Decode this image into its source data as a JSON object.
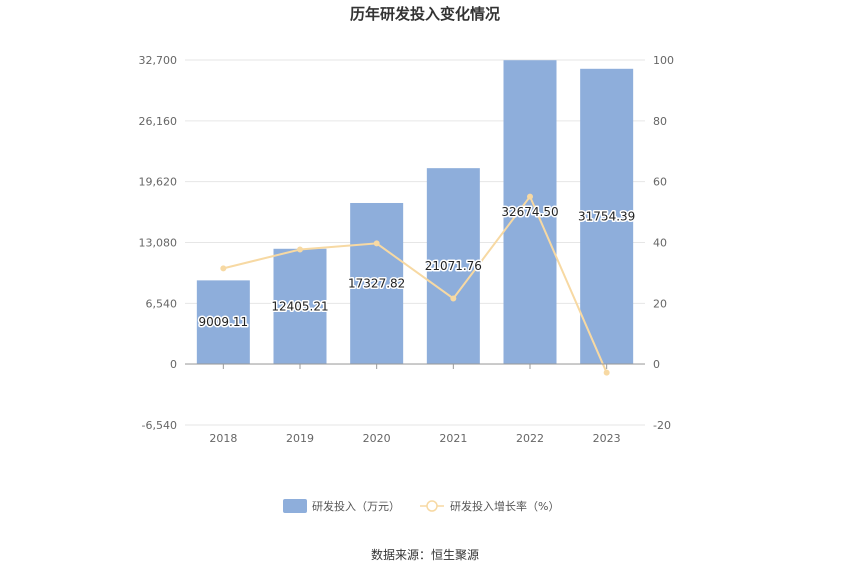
{
  "chart_data": {
    "type": "bar",
    "title": "历年研发投入变化情况",
    "categories": [
      "2018",
      "2019",
      "2020",
      "2021",
      "2022",
      "2023"
    ],
    "series": [
      {
        "name": "研发投入（万元）",
        "type": "bar",
        "axis": "left",
        "color": "#8eaedb",
        "values": [
          9009.11,
          12405.21,
          17327.82,
          21071.76,
          32674.5,
          31754.39
        ],
        "labels": [
          "9009.11",
          "12405.21",
          "17327.82",
          "21071.76",
          "32674.50",
          "31754.39"
        ]
      },
      {
        "name": "研发投入增长率（%）",
        "type": "line",
        "axis": "right",
        "color": "#f7d9a3",
        "values": [
          31.5,
          37.7,
          39.7,
          21.6,
          55.1,
          -2.8
        ]
      }
    ],
    "y_left": {
      "ticks": [
        32700,
        26160,
        19620,
        13080,
        6540,
        0,
        -6540
      ],
      "tick_labels": [
        "32,700",
        "26,160",
        "19,620",
        "13,080",
        "6,540",
        "0",
        "-6,540"
      ],
      "ylim": [
        -6540,
        32700
      ]
    },
    "y_right": {
      "ticks": [
        100,
        80,
        60,
        40,
        20,
        0,
        -20
      ],
      "tick_labels": [
        "100",
        "80",
        "60",
        "40",
        "20",
        "0",
        "-20"
      ],
      "ylim": [
        -20,
        100
      ]
    },
    "grid": true,
    "legend_position": "bottom"
  },
  "source_text": "数据来源：恒生聚源"
}
